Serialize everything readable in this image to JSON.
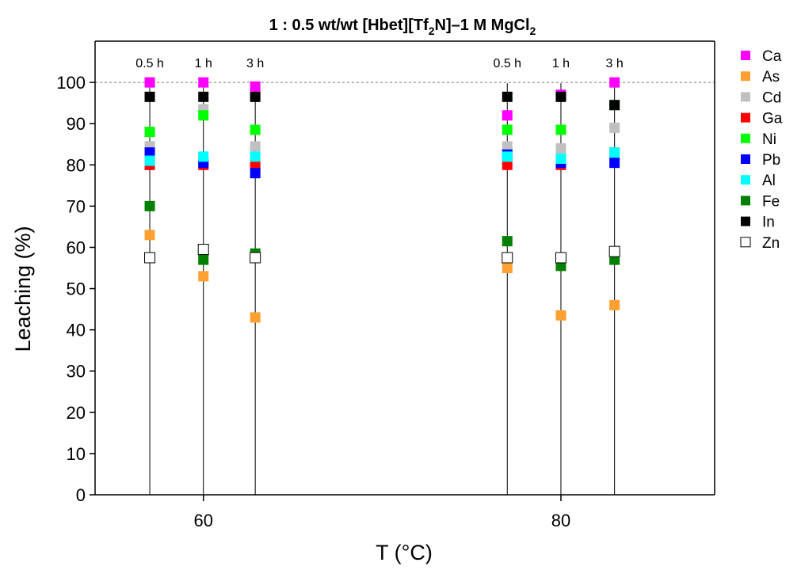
{
  "chart_data": {
    "type": "scatter",
    "title": {
      "main": "1 : 0.5 wt/wt [Hbet][Tf",
      "sub1": "2",
      "mid": "N]–1 M MgCl",
      "sub2": "2"
    },
    "xlabel": "T (°C)",
    "ylabel": "Leaching (%)",
    "xlim": [
      53.94,
      88.6
    ],
    "ylim": [
      0,
      110
    ],
    "x_ticks": [
      60,
      80
    ],
    "y_ticks": [
      0,
      10,
      20,
      30,
      40,
      50,
      60,
      70,
      80,
      90,
      100
    ],
    "reference_line": {
      "y": 100,
      "style": "dashed"
    },
    "legend_position": "top-right outside",
    "time_points": [
      {
        "label": "0.5 h",
        "x": 57.0
      },
      {
        "label": "1 h",
        "x": 60.0
      },
      {
        "label": "3 h",
        "x": 62.9
      },
      {
        "label": "0.5 h",
        "x": 77.0
      },
      {
        "label": "1 h",
        "x": 80.0
      },
      {
        "label": "3 h",
        "x": 83.0
      }
    ],
    "series": [
      {
        "name": "Ca",
        "color": "#ff00ff",
        "filled": true,
        "values": [
          100,
          100,
          99,
          92,
          97,
          100
        ]
      },
      {
        "name": "As",
        "color": "#ffa030",
        "filled": true,
        "values": [
          63,
          53,
          43,
          55,
          43.5,
          46
        ]
      },
      {
        "name": "Cd",
        "color": "#c0c0c0",
        "filled": true,
        "values": [
          84.5,
          93.5,
          84.5,
          84.5,
          84,
          89
        ]
      },
      {
        "name": "Ga",
        "color": "#ff0000",
        "filled": true,
        "values": [
          80,
          80,
          80,
          80,
          80,
          83
        ]
      },
      {
        "name": "Ni",
        "color": "#00ff00",
        "filled": true,
        "values": [
          88,
          92,
          88.5,
          88.5,
          88.5,
          94.5
        ]
      },
      {
        "name": "Pb",
        "color": "#0000ff",
        "filled": true,
        "values": [
          83,
          80.5,
          78,
          82.5,
          80.5,
          80.5
        ]
      },
      {
        "name": "Al",
        "color": "#00ffff",
        "filled": true,
        "values": [
          81,
          82,
          82,
          82,
          81.5,
          83
        ]
      },
      {
        "name": "Fe",
        "color": "#008000",
        "filled": true,
        "values": [
          70,
          57,
          58.5,
          61.5,
          55.5,
          57
        ]
      },
      {
        "name": "In",
        "color": "#000000",
        "filled": true,
        "values": [
          96.5,
          96.5,
          96.5,
          96.5,
          96.5,
          94.5
        ]
      },
      {
        "name": "Zn",
        "color": "#000000",
        "filled": false,
        "values": [
          57.5,
          59.5,
          57.5,
          57.5,
          57.5,
          59
        ]
      }
    ]
  }
}
